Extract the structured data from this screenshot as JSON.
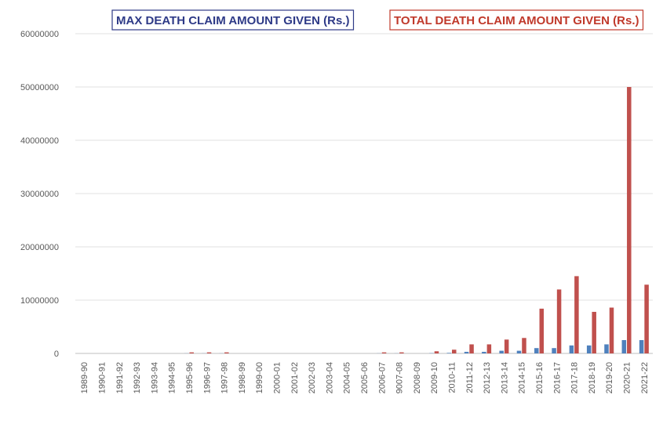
{
  "chart_data": {
    "type": "bar",
    "categories": [
      "1989-90",
      "1990-91",
      "1991-92",
      "1992-93",
      "1993-94",
      "1994-95",
      "1995-96",
      "1996-97",
      "1997-98",
      "1998-99",
      "1999-00",
      "2000-01",
      "2001-02",
      "2002-03",
      "2003-04",
      "2004-05",
      "2005-06",
      "2006-07",
      "9007-08",
      "2008-09",
      "2009-10",
      "2010-11",
      "2011-12",
      "2012-13",
      "2013-14",
      "2014-15",
      "2015-16",
      "2016-17",
      "2017-18",
      "2018-19",
      "2019-20",
      "2020-21",
      "2021-22"
    ],
    "series": [
      {
        "name": "MAX DEATH CLAIM AMOUNT GIVEN (Rs.)",
        "color": "#4f81bd",
        "legend_color": "#2e3a87",
        "values": [
          0,
          0,
          0,
          0,
          0,
          0,
          20000,
          20000,
          20000,
          0,
          0,
          0,
          0,
          0,
          0,
          0,
          0,
          20000,
          20000,
          0,
          50000,
          100000,
          300000,
          300000,
          500000,
          500000,
          1000000,
          1000000,
          1500000,
          1500000,
          1700000,
          2500000,
          2500000
        ]
      },
      {
        "name": "TOTAL DEATH CLAIM AMOUNT GIVEN (Rs.)",
        "color": "#c0504d",
        "legend_color": "#c0392b",
        "values": [
          0,
          0,
          0,
          0,
          0,
          0,
          200000,
          200000,
          200000,
          0,
          0,
          0,
          0,
          0,
          0,
          0,
          0,
          200000,
          200000,
          0,
          400000,
          700000,
          1700000,
          1700000,
          2600000,
          2900000,
          8400000,
          12000000,
          14500000,
          7800000,
          8600000,
          50000000,
          12900000
        ]
      }
    ],
    "ylim": [
      0,
      60000000
    ],
    "yticks": [
      0,
      10000000,
      20000000,
      30000000,
      40000000,
      50000000,
      60000000
    ],
    "grid": true
  }
}
